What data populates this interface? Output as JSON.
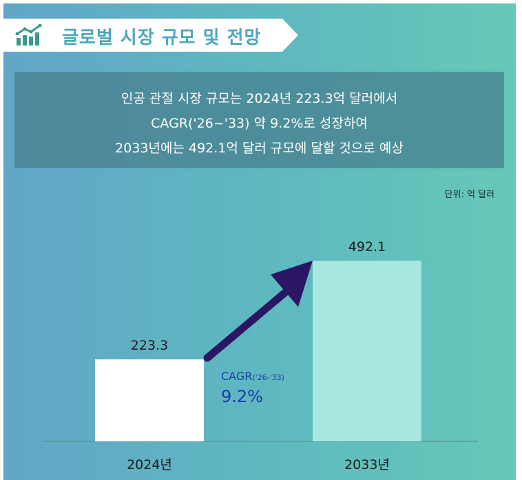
{
  "header": {
    "title": "글로벌 시장 규모 및 전망",
    "icon": "bar-chart-trend-icon"
  },
  "summary": {
    "lines": [
      "인공 관절 시장 규모는 2024년 223.3억 달러에서",
      "CAGR('26~'33) 약 9.2%로 성장하여",
      "2033년에는 492.1억 달러 규모에 달할 것으로 예상"
    ]
  },
  "colors": {
    "bar_2024": "#ffffff",
    "bar_2033": "#a8e6e0",
    "arrow": "#2a1665",
    "title": "#4aa7bb",
    "cagr_text": "#1e3aa8"
  },
  "chart_data": {
    "type": "bar",
    "unit_label": "단위: 억 달러",
    "categories": [
      "2024년",
      "2033년"
    ],
    "values": [
      223.3,
      492.1
    ],
    "value_labels": [
      "223.3",
      "492.1"
    ],
    "annotation": {
      "label": "CAGR",
      "period": "('26-'33)",
      "value": "9.2%"
    },
    "grid": false,
    "legend": "none"
  }
}
